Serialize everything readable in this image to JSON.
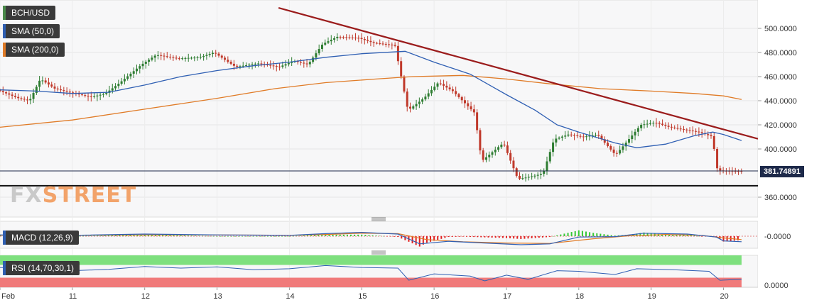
{
  "legend": {
    "pair": "BCH/USD",
    "sma50": "SMA (50,0)",
    "sma200": "SMA (200,0)",
    "macd": "MACD (12,26,9)",
    "rsi": "RSI (14,70,30,1)"
  },
  "current_price_label": "381.74891",
  "watermark": {
    "part1": "FX",
    "part2": "STREET"
  },
  "colors": {
    "candle_up": "#2e7d32",
    "candle_down": "#c0392b",
    "sma50": "#2f5fb3",
    "sma200": "#e07b27",
    "trendline": "#9b1c1c",
    "support": "#111111",
    "price_line": "#1e2a4a",
    "macd_line": "#2f5fb3",
    "signal_line": "#e07b27",
    "hist_pos": "#37c837",
    "hist_neg": "#e02020",
    "rsi_line": "#2f5fb3",
    "rsi_overbought": "#7ee07e",
    "rsi_oversold": "#f07a7a"
  },
  "chart_data": {
    "type": "candlestick",
    "price_axis": {
      "ticks": [
        "500.0000",
        "480.0000",
        "460.0000",
        "440.0000",
        "420.0000",
        "400.0000",
        "360.0000"
      ],
      "ylim": [
        352,
        506
      ]
    },
    "x_labels": [
      "Feb",
      "11",
      "12",
      "13",
      "14",
      "15",
      "16",
      "17",
      "18",
      "19",
      "20"
    ],
    "x_range": [
      10,
      20.25
    ],
    "macd_axis_label": "-0.0000",
    "rsi_axis_label": "0.0000",
    "current_price": 381.74891,
    "price_path": [
      [
        10.0,
        449
      ],
      [
        10.3,
        442
      ],
      [
        10.45,
        440
      ],
      [
        10.6,
        458
      ],
      [
        10.8,
        450
      ],
      [
        11.0,
        447
      ],
      [
        11.3,
        443
      ],
      [
        11.5,
        446
      ],
      [
        11.7,
        455
      ],
      [
        12.0,
        470
      ],
      [
        12.2,
        478
      ],
      [
        12.5,
        475
      ],
      [
        12.8,
        476
      ],
      [
        13.0,
        480
      ],
      [
        13.3,
        468
      ],
      [
        13.6,
        471
      ],
      [
        13.9,
        468
      ],
      [
        14.1,
        473
      ],
      [
        14.3,
        470
      ],
      [
        14.5,
        487
      ],
      [
        14.7,
        493
      ],
      [
        15.0,
        492
      ],
      [
        15.2,
        488
      ],
      [
        15.5,
        486
      ],
      [
        15.62,
        450
      ],
      [
        15.68,
        432
      ],
      [
        15.9,
        442
      ],
      [
        16.1,
        455
      ],
      [
        16.3,
        448
      ],
      [
        16.6,
        430
      ],
      [
        16.7,
        390
      ],
      [
        16.8,
        395
      ],
      [
        17.0,
        405
      ],
      [
        17.2,
        375
      ],
      [
        17.45,
        378
      ],
      [
        17.55,
        380
      ],
      [
        17.7,
        408
      ],
      [
        17.9,
        412
      ],
      [
        18.1,
        410
      ],
      [
        18.3,
        412
      ],
      [
        18.55,
        395
      ],
      [
        18.65,
        402
      ],
      [
        18.9,
        420
      ],
      [
        19.1,
        422
      ],
      [
        19.3,
        418
      ],
      [
        19.5,
        416
      ],
      [
        19.7,
        414
      ],
      [
        19.9,
        410
      ],
      [
        19.93,
        385
      ],
      [
        20.0,
        382
      ],
      [
        20.25,
        381.7
      ]
    ],
    "sma50": [
      [
        10.0,
        449
      ],
      [
        10.5,
        448
      ],
      [
        11.0,
        446
      ],
      [
        11.5,
        447
      ],
      [
        12.0,
        453
      ],
      [
        12.5,
        460
      ],
      [
        13.0,
        465
      ],
      [
        13.5,
        469
      ],
      [
        14.0,
        472
      ],
      [
        14.5,
        476
      ],
      [
        15.0,
        479
      ],
      [
        15.6,
        481
      ],
      [
        16.0,
        472
      ],
      [
        16.5,
        462
      ],
      [
        17.0,
        445
      ],
      [
        17.4,
        432
      ],
      [
        17.7,
        420
      ],
      [
        18.0,
        414
      ],
      [
        18.5,
        405
      ],
      [
        18.8,
        401
      ],
      [
        19.2,
        404
      ],
      [
        19.6,
        411
      ],
      [
        19.85,
        414
      ],
      [
        20.0,
        412
      ],
      [
        20.25,
        407
      ]
    ],
    "sma200": [
      [
        10.0,
        418
      ],
      [
        11.0,
        424
      ],
      [
        12.0,
        433
      ],
      [
        13.0,
        442
      ],
      [
        13.8,
        450
      ],
      [
        14.5,
        455
      ],
      [
        15.2,
        458
      ],
      [
        15.7,
        460
      ],
      [
        16.4,
        461
      ],
      [
        17.0,
        458
      ],
      [
        17.6,
        454
      ],
      [
        18.3,
        450
      ],
      [
        19.0,
        448
      ],
      [
        19.6,
        446
      ],
      [
        20.0,
        444
      ],
      [
        20.25,
        441
      ]
    ],
    "trendline": [
      [
        13.85,
        517
      ],
      [
        20.5,
        408
      ]
    ],
    "support_level": 369.5,
    "macd_line": [
      [
        10.0,
        0.3
      ],
      [
        11.0,
        0.2
      ],
      [
        12.0,
        0.5
      ],
      [
        13.0,
        0.3
      ],
      [
        14.0,
        0.2
      ],
      [
        14.5,
        0.6
      ],
      [
        15.0,
        0.9
      ],
      [
        15.5,
        0.5
      ],
      [
        15.8,
        -1.8
      ],
      [
        16.2,
        -1.2
      ],
      [
        16.7,
        -1.6
      ],
      [
        17.2,
        -2.0
      ],
      [
        17.6,
        -1.8
      ],
      [
        18.0,
        -0.2
      ],
      [
        18.5,
        -0.1
      ],
      [
        18.9,
        0.7
      ],
      [
        19.5,
        0.5
      ],
      [
        19.9,
        -0.2
      ],
      [
        20.0,
        -1.1
      ],
      [
        20.25,
        -1.3
      ]
    ],
    "signal_line": [
      [
        10.0,
        0.2
      ],
      [
        11.0,
        0.2
      ],
      [
        12.0,
        0.3
      ],
      [
        13.0,
        0.3
      ],
      [
        14.0,
        0.2
      ],
      [
        14.5,
        0.4
      ],
      [
        15.0,
        0.7
      ],
      [
        15.5,
        0.6
      ],
      [
        15.9,
        -0.8
      ],
      [
        16.4,
        -1.3
      ],
      [
        17.0,
        -1.6
      ],
      [
        17.6,
        -1.7
      ],
      [
        18.2,
        -0.6
      ],
      [
        18.7,
        0.1
      ],
      [
        19.2,
        0.4
      ],
      [
        19.7,
        0.2
      ],
      [
        20.0,
        -0.4
      ],
      [
        20.25,
        -0.8
      ]
    ],
    "rsi": [
      [
        10.0,
        62
      ],
      [
        10.5,
        55
      ],
      [
        11.0,
        52
      ],
      [
        11.5,
        56
      ],
      [
        12.0,
        65
      ],
      [
        12.5,
        60
      ],
      [
        13.0,
        64
      ],
      [
        13.5,
        55
      ],
      [
        14.0,
        58
      ],
      [
        14.5,
        68
      ],
      [
        15.0,
        62
      ],
      [
        15.5,
        60
      ],
      [
        15.65,
        22
      ],
      [
        16.0,
        42
      ],
      [
        16.5,
        35
      ],
      [
        16.7,
        20
      ],
      [
        17.0,
        38
      ],
      [
        17.3,
        25
      ],
      [
        17.7,
        52
      ],
      [
        18.0,
        50
      ],
      [
        18.5,
        40
      ],
      [
        18.8,
        58
      ],
      [
        19.3,
        55
      ],
      [
        19.8,
        50
      ],
      [
        19.95,
        22
      ],
      [
        20.25,
        25
      ]
    ],
    "rsi_bands": {
      "overbought": 70,
      "oversold": 30,
      "range": [
        0,
        100
      ]
    }
  }
}
